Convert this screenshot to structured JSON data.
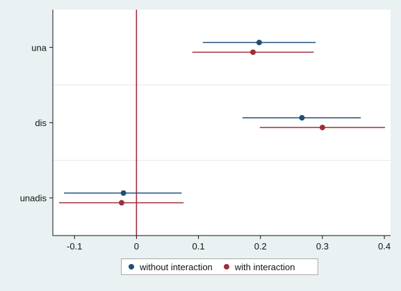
{
  "chart_data": {
    "type": "scatter",
    "subtype": "coefficient-plot",
    "title": "",
    "xlabel": "",
    "ylabel": "",
    "orientation": "horizontal",
    "xlim": [
      -0.135,
      0.41
    ],
    "xticks": [
      -0.1,
      0,
      0.1,
      0.2,
      0.3,
      0.4
    ],
    "xtick_labels": [
      "-0.1",
      "0",
      "0.1",
      "0.2",
      "0.3",
      "0.4"
    ],
    "categories": [
      "una",
      "dis",
      "unadis"
    ],
    "reference_line": {
      "x": 0,
      "color": "#a0293c"
    },
    "grid": "horizontal separators between categories",
    "legend_position": "bottom",
    "series": [
      {
        "name": "without interaction",
        "color": "#1f4e79",
        "estimates": [
          0.198,
          0.267,
          -0.021
        ],
        "ci_lower": [
          0.107,
          0.171,
          -0.117
        ],
        "ci_upper": [
          0.289,
          0.362,
          0.073
        ]
      },
      {
        "name": "with interaction",
        "color": "#9c2f3a",
        "estimates": [
          0.188,
          0.3,
          -0.024
        ],
        "ci_lower": [
          0.09,
          0.199,
          -0.125
        ],
        "ci_upper": [
          0.286,
          0.401,
          0.076
        ]
      }
    ]
  }
}
